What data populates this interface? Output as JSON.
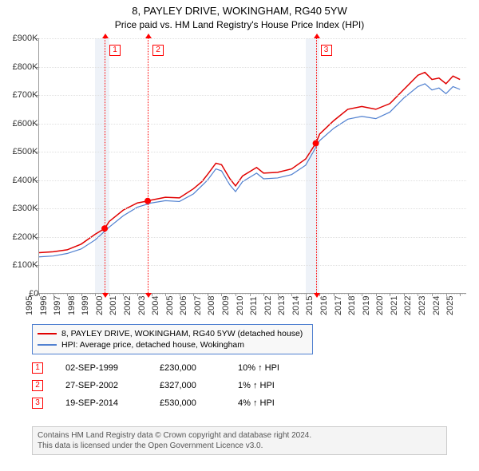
{
  "title": "8, PAYLEY DRIVE, WOKINGHAM, RG40 5YW",
  "subtitle": "Price paid vs. HM Land Registry's House Price Index (HPI)",
  "chart": {
    "type": "line",
    "x_years": [
      1995,
      1996,
      1997,
      1998,
      1999,
      2000,
      2001,
      2002,
      2003,
      2004,
      2005,
      2006,
      2007,
      2008,
      2009,
      2010,
      2011,
      2012,
      2013,
      2014,
      2015,
      2016,
      2017,
      2018,
      2019,
      2020,
      2021,
      2022,
      2023,
      2024,
      2025
    ],
    "y_ticks": [
      0,
      100,
      200,
      300,
      400,
      500,
      600,
      700,
      800,
      900
    ],
    "y_tick_labels": [
      "£0",
      "£100K",
      "£200K",
      "£300K",
      "£400K",
      "£500K",
      "£600K",
      "£700K",
      "£800K",
      "£900K"
    ],
    "ylim": [
      0,
      900
    ],
    "xlim": [
      1995,
      2025.5
    ],
    "bands": [
      {
        "from": 1999,
        "to": 2000
      },
      {
        "from": 2014,
        "to": 2015
      }
    ],
    "series": [
      {
        "name": "8, PAYLEY DRIVE, WOKINGHAM, RG40 5YW (detached house)",
        "color": "#e00000",
        "width": 1.5,
        "points": [
          [
            1995,
            145
          ],
          [
            1996,
            148
          ],
          [
            1997,
            155
          ],
          [
            1998,
            175
          ],
          [
            1999,
            210
          ],
          [
            1999.67,
            230
          ],
          [
            2000,
            255
          ],
          [
            2001,
            295
          ],
          [
            2002,
            320
          ],
          [
            2002.74,
            327
          ],
          [
            2003,
            330
          ],
          [
            2004,
            340
          ],
          [
            2005,
            338
          ],
          [
            2006,
            370
          ],
          [
            2006.6,
            395
          ],
          [
            2007,
            420
          ],
          [
            2007.6,
            460
          ],
          [
            2008,
            455
          ],
          [
            2008.6,
            405
          ],
          [
            2009,
            380
          ],
          [
            2009.5,
            415
          ],
          [
            2010,
            430
          ],
          [
            2010.5,
            445
          ],
          [
            2011,
            425
          ],
          [
            2012,
            428
          ],
          [
            2013,
            440
          ],
          [
            2014,
            475
          ],
          [
            2014.72,
            530
          ],
          [
            2015,
            563
          ],
          [
            2016,
            610
          ],
          [
            2017,
            650
          ],
          [
            2018,
            660
          ],
          [
            2019,
            650
          ],
          [
            2020,
            670
          ],
          [
            2021,
            720
          ],
          [
            2022,
            770
          ],
          [
            2022.5,
            780
          ],
          [
            2023,
            755
          ],
          [
            2023.5,
            760
          ],
          [
            2024,
            740
          ],
          [
            2024.5,
            767
          ],
          [
            2025,
            755
          ]
        ]
      },
      {
        "name": "HPI: Average price, detached house, Wokingham",
        "color": "#5080d0",
        "width": 1.2,
        "points": [
          [
            1995,
            130
          ],
          [
            1996,
            133
          ],
          [
            1997,
            142
          ],
          [
            1998,
            158
          ],
          [
            1999,
            190
          ],
          [
            2000,
            235
          ],
          [
            2001,
            275
          ],
          [
            2002,
            305
          ],
          [
            2003,
            320
          ],
          [
            2004,
            328
          ],
          [
            2005,
            325
          ],
          [
            2006,
            352
          ],
          [
            2007,
            400
          ],
          [
            2007.6,
            440
          ],
          [
            2008,
            433
          ],
          [
            2008.6,
            383
          ],
          [
            2009,
            360
          ],
          [
            2009.5,
            395
          ],
          [
            2010,
            410
          ],
          [
            2010.5,
            425
          ],
          [
            2011,
            405
          ],
          [
            2012,
            408
          ],
          [
            2013,
            420
          ],
          [
            2014,
            453
          ],
          [
            2015,
            540
          ],
          [
            2016,
            583
          ],
          [
            2017,
            615
          ],
          [
            2018,
            625
          ],
          [
            2019,
            617
          ],
          [
            2020,
            640
          ],
          [
            2021,
            690
          ],
          [
            2022,
            730
          ],
          [
            2022.5,
            740
          ],
          [
            2023,
            718
          ],
          [
            2023.5,
            725
          ],
          [
            2024,
            705
          ],
          [
            2024.5,
            730
          ],
          [
            2025,
            720
          ]
        ]
      }
    ],
    "markers": [
      {
        "num": "1",
        "year": 1999.67,
        "value": 230
      },
      {
        "num": "2",
        "year": 2002.74,
        "value": 327
      },
      {
        "num": "3",
        "year": 2014.72,
        "value": 530
      }
    ],
    "background_color": "#ffffff",
    "grid_color": "#e0e0e0",
    "axis_color": "#999999",
    "label_fontsize": 11,
    "title_fontsize": 13
  },
  "legend": {
    "items": [
      {
        "color": "#e00000",
        "label": "8, PAYLEY DRIVE, WOKINGHAM, RG40 5YW (detached house)"
      },
      {
        "color": "#5080d0",
        "label": "HPI: Average price, detached house, Wokingham"
      }
    ]
  },
  "events": [
    {
      "num": "1",
      "date": "02-SEP-1999",
      "price": "£230,000",
      "diff": "10% ↑ HPI"
    },
    {
      "num": "2",
      "date": "27-SEP-2002",
      "price": "£327,000",
      "diff": "1% ↑ HPI"
    },
    {
      "num": "3",
      "date": "19-SEP-2014",
      "price": "£530,000",
      "diff": "4% ↑ HPI"
    }
  ],
  "licence": {
    "line1": "Contains HM Land Registry data © Crown copyright and database right 2024.",
    "line2": "This data is licensed under the Open Government Licence v3.0."
  }
}
